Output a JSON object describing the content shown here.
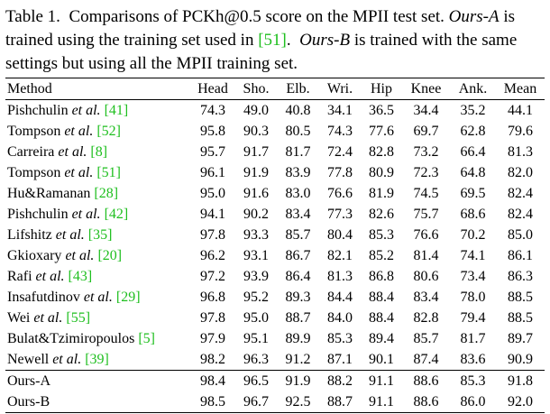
{
  "caption": {
    "label": "Table 1.",
    "text1": "Comparisons of PCKh@0.5 score on the MPII test set.",
    "oursA": "Ours-A",
    "text2": "is trained using the training set used in",
    "cite51": "[51]",
    "text3": ".",
    "oursB": "Ours-B",
    "text4": "is trained with the same settings but using all the MPII training set."
  },
  "table": {
    "headers": [
      "Method",
      "Head",
      "Sho.",
      "Elb.",
      "Wri.",
      "Hip",
      "Knee",
      "Ank.",
      "Mean"
    ],
    "rows": [
      {
        "name": "Pishchulin",
        "etal": "et al.",
        "cite": "[41]",
        "values": [
          "74.3",
          "49.0",
          "40.8",
          "34.1",
          "36.5",
          "34.4",
          "35.2",
          "44.1"
        ]
      },
      {
        "name": "Tompson",
        "etal": "et al.",
        "cite": "[52]",
        "values": [
          "95.8",
          "90.3",
          "80.5",
          "74.3",
          "77.6",
          "69.7",
          "62.8",
          "79.6"
        ]
      },
      {
        "name": "Carreira",
        "etal": "et al.",
        "cite": "[8]",
        "values": [
          "95.7",
          "91.7",
          "81.7",
          "72.4",
          "82.8",
          "73.2",
          "66.4",
          "81.3"
        ]
      },
      {
        "name": "Tompson",
        "etal": "et al.",
        "cite": "[51]",
        "values": [
          "96.1",
          "91.9",
          "83.9",
          "77.8",
          "80.9",
          "72.3",
          "64.8",
          "82.0"
        ]
      },
      {
        "name": "Hu&Ramanan",
        "etal": "",
        "cite": "[28]",
        "values": [
          "95.0",
          "91.6",
          "83.0",
          "76.6",
          "81.9",
          "74.5",
          "69.5",
          "82.4"
        ]
      },
      {
        "name": "Pishchulin",
        "etal": "et al.",
        "cite": "[42]",
        "values": [
          "94.1",
          "90.2",
          "83.4",
          "77.3",
          "82.6",
          "75.7",
          "68.6",
          "82.4"
        ]
      },
      {
        "name": "Lifshitz",
        "etal": "et al.",
        "cite": "[35]",
        "values": [
          "97.8",
          "93.3",
          "85.7",
          "80.4",
          "85.3",
          "76.6",
          "70.2",
          "85.0"
        ]
      },
      {
        "name": "Gkioxary",
        "etal": "et al.",
        "cite": "[20]",
        "values": [
          "96.2",
          "93.1",
          "86.7",
          "82.1",
          "85.2",
          "81.4",
          "74.1",
          "86.1"
        ]
      },
      {
        "name": "Rafi",
        "etal": "et al.",
        "cite": "[43]",
        "values": [
          "97.2",
          "93.9",
          "86.4",
          "81.3",
          "86.8",
          "80.6",
          "73.4",
          "86.3"
        ]
      },
      {
        "name": "Insafutdinov",
        "etal": "et al.",
        "cite": "[29]",
        "values": [
          "96.8",
          "95.2",
          "89.3",
          "84.4",
          "88.4",
          "83.4",
          "78.0",
          "88.5"
        ]
      },
      {
        "name": "Wei",
        "etal": "et al.",
        "cite": "[55]",
        "values": [
          "97.8",
          "95.0",
          "88.7",
          "84.0",
          "88.4",
          "82.8",
          "79.4",
          "88.5"
        ]
      },
      {
        "name": "Bulat&Tzimiropoulos",
        "etal": "",
        "cite": "[5]",
        "values": [
          "97.9",
          "95.1",
          "89.9",
          "85.3",
          "89.4",
          "85.7",
          "81.7",
          "89.7"
        ]
      },
      {
        "name": "Newell",
        "etal": "et al.",
        "cite": "[39]",
        "values": [
          "98.2",
          "96.3",
          "91.2",
          "87.1",
          "90.1",
          "87.4",
          "83.6",
          "90.9"
        ]
      }
    ],
    "ours": [
      {
        "name": "Ours-A",
        "values": [
          "98.4",
          "96.5",
          "91.9",
          "88.2",
          "91.1",
          "88.6",
          "85.3",
          "91.8"
        ]
      },
      {
        "name": "Ours-B",
        "values": [
          "98.5",
          "96.7",
          "92.5",
          "88.7",
          "91.1",
          "88.6",
          "86.0",
          "92.0"
        ]
      }
    ]
  },
  "colors": {
    "citation": "#1fbf1f",
    "text": "#000000"
  }
}
